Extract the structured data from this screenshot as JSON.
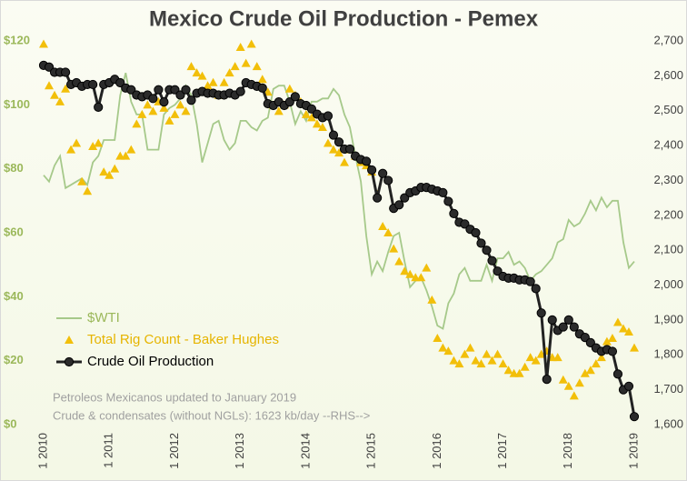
{
  "chart_data": {
    "type": "line",
    "title": "Mexico Crude Oil Production - Pemex",
    "annotations": [
      "Petroleos Mexicanos updated to January 2019",
      "Crude & condensates (without NGLs): 1623 kb/day --RHS-->"
    ],
    "categories": [
      "1 2010",
      null,
      null,
      null,
      null,
      null,
      null,
      null,
      null,
      null,
      null,
      null,
      "1 2011",
      null,
      null,
      null,
      null,
      null,
      null,
      null,
      null,
      null,
      null,
      null,
      "1 2012",
      null,
      null,
      null,
      null,
      null,
      null,
      null,
      null,
      null,
      null,
      null,
      "1 2013",
      null,
      null,
      null,
      null,
      null,
      null,
      null,
      null,
      null,
      null,
      null,
      "1 2014",
      null,
      null,
      null,
      null,
      null,
      null,
      null,
      null,
      null,
      null,
      null,
      "1 2015",
      null,
      null,
      null,
      null,
      null,
      null,
      null,
      null,
      null,
      null,
      null,
      "1 2016",
      null,
      null,
      null,
      null,
      null,
      null,
      null,
      null,
      null,
      null,
      null,
      "1 2017",
      null,
      null,
      null,
      null,
      null,
      null,
      null,
      null,
      null,
      null,
      null,
      "1 2018",
      null,
      null,
      null,
      null,
      null,
      null,
      null,
      null,
      null,
      null,
      null,
      "1 2019"
    ],
    "series": [
      {
        "name": "$WTI",
        "color": "#a6c98a",
        "marker": "none",
        "values": [
          78,
          76,
          81,
          84,
          74,
          75,
          76,
          77,
          75,
          82,
          84,
          89,
          89,
          89,
          103,
          110,
          101,
          97,
          97,
          86,
          86,
          86,
          97,
          99,
          100,
          102,
          106,
          103,
          94,
          82,
          88,
          94,
          95,
          89,
          86,
          88,
          95,
          95,
          93,
          92,
          95,
          96,
          105,
          106,
          106,
          101,
          94,
          98,
          95,
          101,
          101,
          102,
          102,
          105,
          103,
          97,
          93,
          84,
          76,
          59,
          47,
          51,
          48,
          54,
          59,
          60,
          51,
          43,
          45,
          46,
          42,
          37,
          31,
          30,
          38,
          41,
          47,
          49,
          45,
          45,
          45,
          50,
          45,
          52,
          52,
          54,
          50,
          51,
          49,
          45,
          47,
          48,
          50,
          52,
          57,
          58,
          64,
          62,
          63,
          66,
          70,
          67,
          71,
          68,
          70,
          70,
          57,
          49,
          51
        ]
      },
      {
        "name": "Total Rig Count - Baker Hughes",
        "color": "#f2bf0a",
        "marker": "triangle",
        "values": [
          119,
          106,
          103,
          101,
          105,
          86,
          88,
          76,
          73,
          87,
          88,
          79,
          78,
          80,
          84,
          84,
          86,
          94,
          97,
          100,
          98,
          101,
          99,
          95,
          97,
          100,
          98,
          112,
          110,
          109,
          106,
          107,
          103,
          107,
          110,
          112,
          118,
          113,
          119,
          112,
          108,
          104,
          100,
          98,
          100,
          105,
          103,
          101,
          97,
          96,
          94,
          93,
          88,
          86,
          85,
          82,
          86,
          84,
          82,
          81,
          79,
          72,
          62,
          60,
          55,
          51,
          48,
          47,
          46,
          46,
          49,
          39,
          27,
          24,
          23,
          20,
          19,
          22,
          24,
          20,
          19,
          22,
          20,
          22,
          19,
          17,
          16,
          16,
          18,
          21,
          20,
          22,
          23,
          21,
          21,
          14,
          12,
          9,
          13,
          16,
          17,
          19,
          21,
          26,
          27,
          32,
          30,
          29,
          24
        ]
      },
      {
        "name": "Crude Oil Production",
        "color": "#222222",
        "marker": "circle",
        "axis": "y2",
        "values": [
          2630,
          2625,
          2610,
          2610,
          2610,
          2575,
          2580,
          2570,
          2575,
          2575,
          2510,
          2575,
          2580,
          2590,
          2580,
          2565,
          2560,
          2545,
          2540,
          2545,
          2535,
          2560,
          2525,
          2560,
          2560,
          2545,
          2560,
          2530,
          2550,
          2555,
          2550,
          2550,
          2545,
          2545,
          2550,
          2545,
          2555,
          2580,
          2575,
          2570,
          2565,
          2520,
          2515,
          2525,
          2515,
          2525,
          2540,
          2520,
          2515,
          2505,
          2490,
          2480,
          2485,
          2430,
          2410,
          2390,
          2390,
          2370,
          2360,
          2355,
          2330,
          2250,
          2320,
          2300,
          2220,
          2230,
          2250,
          2265,
          2270,
          2280,
          2280,
          2275,
          2270,
          2265,
          2240,
          2205,
          2180,
          2175,
          2160,
          2150,
          2120,
          2100,
          2070,
          2040,
          2025,
          2020,
          2020,
          2015,
          2015,
          2010,
          1990,
          1920,
          1730,
          1900,
          1870,
          1880,
          1900,
          1880,
          1860,
          1850,
          1835,
          1820,
          1810,
          1815,
          1810,
          1745,
          1700,
          1710,
          1623
        ]
      }
    ],
    "ylim": [
      0,
      120
    ],
    "yticks": [
      {
        "value": 0,
        "label": "$0"
      },
      {
        "value": 20,
        "label": "$20"
      },
      {
        "value": 40,
        "label": "$40"
      },
      {
        "value": 60,
        "label": "$60"
      },
      {
        "value": 80,
        "label": "$80"
      },
      {
        "value": 100,
        "label": "$100"
      },
      {
        "value": 120,
        "label": "$120"
      }
    ],
    "y2lim": [
      1600,
      2700
    ],
    "y2ticks": [
      {
        "value": 1600,
        "label": "1,600"
      },
      {
        "value": 1700,
        "label": "1,700"
      },
      {
        "value": 1800,
        "label": "1,800"
      },
      {
        "value": 1900,
        "label": "1,900"
      },
      {
        "value": 2000,
        "label": "2,000"
      },
      {
        "value": 2100,
        "label": "2,100"
      },
      {
        "value": 2200,
        "label": "2,200"
      },
      {
        "value": 2300,
        "label": "2,300"
      },
      {
        "value": 2400,
        "label": "2,400"
      },
      {
        "value": 2500,
        "label": "2,500"
      },
      {
        "value": 2600,
        "label": "2,600"
      },
      {
        "value": 2700,
        "label": "2,700"
      }
    ],
    "legend": "lower-left"
  }
}
